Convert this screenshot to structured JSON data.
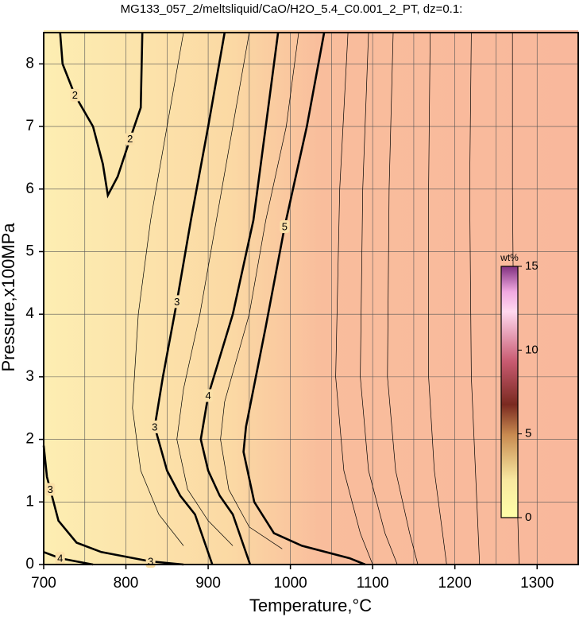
{
  "chart_data": {
    "type": "contour",
    "title": "MG133_057_2/meltsliquid/CaO/H2O_5.4_C0.001_2_PT, dz=0.1:",
    "xlabel": "Temperature,°C",
    "ylabel": "Pressure,x100MPa",
    "xlim": [
      700,
      1350
    ],
    "ylim": [
      0,
      8.5
    ],
    "xticks": [
      700,
      800,
      900,
      1000,
      1100,
      1200,
      1300
    ],
    "xgrid_minor": [
      750,
      850,
      950,
      1050,
      1150,
      1250
    ],
    "yticks": [
      0,
      1,
      2,
      3,
      4,
      5,
      6,
      7,
      8
    ],
    "grid": true,
    "contours": [
      {
        "level": 2,
        "x": [
          720,
          723,
          738,
          760,
          772,
          778,
          790,
          805,
          818,
          820
        ],
        "y": [
          8.5,
          8.0,
          7.5,
          7.0,
          6.4,
          5.9,
          6.2,
          6.8,
          7.3,
          8.5
        ]
      },
      {
        "level": 3,
        "x": [
          920,
          900,
          879,
          862,
          845,
          835,
          850,
          866,
          884,
          905
        ],
        "y": [
          8.5,
          7.0,
          5.5,
          4.2,
          3.0,
          2.2,
          1.5,
          1.1,
          0.8,
          0
        ]
      },
      {
        "level": 3,
        "x": [
          700,
          704,
          708,
          718,
          740,
          770,
          830,
          870
        ],
        "y": [
          1.9,
          1.4,
          1.2,
          0.7,
          0.35,
          0.2,
          0.05,
          0
        ]
      },
      {
        "level": 4,
        "x": [
          985,
          970,
          955,
          930,
          900,
          891,
          900,
          914,
          930,
          951
        ],
        "y": [
          8.5,
          7.0,
          5.5,
          4.0,
          2.7,
          2.0,
          1.5,
          1.1,
          0.8,
          0
        ]
      },
      {
        "level": 4,
        "x": [
          700,
          720,
          740,
          760
        ],
        "y": [
          0.2,
          0.1,
          0.05,
          0
        ]
      },
      {
        "level": 5,
        "x": [
          1041,
          1020,
          993,
          970,
          946,
          943,
          956,
          980,
          1014,
          1072,
          1091
        ],
        "y": [
          8.5,
          7.0,
          5.4,
          3.8,
          2.2,
          1.8,
          1.0,
          0.5,
          0.3,
          0.1,
          0
        ]
      }
    ],
    "minor_contours": [
      {
        "x": [
          1070,
          1060,
          1055,
          1065,
          1085,
          1100
        ],
        "y": [
          8.5,
          6.0,
          3.0,
          1.5,
          0.5,
          0
        ]
      },
      {
        "x": [
          1095,
          1088,
          1085,
          1095,
          1115,
          1130
        ],
        "y": [
          8.5,
          6.0,
          3.0,
          1.5,
          0.5,
          0
        ]
      },
      {
        "x": [
          1125,
          1120,
          1118,
          1128,
          1145,
          1155
        ],
        "y": [
          8.5,
          6.0,
          3.0,
          1.5,
          0.5,
          0
        ]
      },
      {
        "x": [
          1170,
          1168,
          1168,
          1175,
          1185,
          1190
        ],
        "y": [
          8.5,
          6.0,
          3.0,
          1.5,
          0.5,
          0
        ]
      },
      {
        "x": [
          1220,
          1218,
          1220,
          1225,
          1230
        ],
        "y": [
          8.5,
          6.0,
          3.0,
          1.5,
          0
        ]
      },
      {
        "x": [
          1270,
          1270,
          1272,
          1275,
          1278
        ],
        "y": [
          8.5,
          6.0,
          3.0,
          1.5,
          0
        ]
      },
      {
        "x": [
          870,
          850,
          830,
          815,
          808,
          818,
          840,
          870
        ],
        "y": [
          8.5,
          7.0,
          5.5,
          4.0,
          2.5,
          1.5,
          0.8,
          0.3
        ]
      },
      {
        "x": [
          950,
          930,
          910,
          890,
          870,
          862,
          875,
          900,
          930
        ],
        "y": [
          8.5,
          7.0,
          5.5,
          4.0,
          2.8,
          2.0,
          1.2,
          0.7,
          0.3
        ]
      },
      {
        "x": [
          1010,
          995,
          970,
          950,
          920,
          915,
          925,
          950,
          990
        ],
        "y": [
          8.5,
          7.0,
          5.5,
          4.0,
          2.6,
          2.0,
          1.2,
          0.6,
          0.25
        ]
      }
    ],
    "colorbar": {
      "label": "wt%",
      "lim": [
        0,
        15
      ],
      "ticks": [
        0,
        5,
        10,
        15
      ]
    }
  }
}
